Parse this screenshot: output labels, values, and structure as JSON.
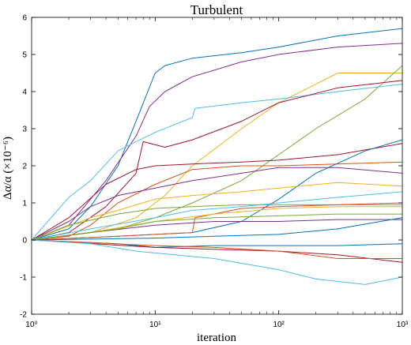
{
  "chart_data": {
    "type": "line",
    "title": "Turbulent",
    "xlabel": "iteration",
    "ylabel": "Δα/α (×10⁻⁶)",
    "xscale": "log",
    "xlim": [
      1,
      1000
    ],
    "ylim": [
      -2,
      6
    ],
    "x_ticks": [
      1,
      10,
      100,
      1000
    ],
    "x_tick_labels": [
      "10⁰",
      "10¹",
      "10²",
      "10³"
    ],
    "y_ticks": [
      -2,
      -1,
      0,
      1,
      2,
      3,
      4,
      5,
      6
    ],
    "y_tick_labels": [
      "-2",
      "-1",
      "0",
      "1",
      "2",
      "3",
      "4",
      "5",
      "6"
    ],
    "grid": false,
    "series": [
      {
        "color": "#0072BD",
        "points": [
          [
            1,
            0
          ],
          [
            2,
            0.3
          ],
          [
            3,
            0.9
          ],
          [
            5,
            2.0
          ],
          [
            7,
            3.2
          ],
          [
            10,
            4.5
          ],
          [
            12,
            4.7
          ],
          [
            20,
            4.9
          ],
          [
            50,
            5.05
          ],
          [
            100,
            5.2
          ],
          [
            300,
            5.5
          ],
          [
            1000,
            5.7
          ]
        ]
      },
      {
        "color": "#7E2F8E",
        "points": [
          [
            1,
            0
          ],
          [
            2,
            0.4
          ],
          [
            4,
            1.6
          ],
          [
            7,
            2.8
          ],
          [
            9,
            3.6
          ],
          [
            12,
            4.0
          ],
          [
            20,
            4.4
          ],
          [
            50,
            4.8
          ],
          [
            100,
            5.0
          ],
          [
            300,
            5.2
          ],
          [
            1000,
            5.3
          ]
        ]
      },
      {
        "color": "#EDB120",
        "points": [
          [
            1,
            0
          ],
          [
            3,
            0.2
          ],
          [
            7,
            0.6
          ],
          [
            12,
            1.2
          ],
          [
            20,
            2.0
          ],
          [
            50,
            3.0
          ],
          [
            100,
            3.7
          ],
          [
            200,
            4.2
          ],
          [
            300,
            4.5
          ],
          [
            1000,
            4.5
          ]
        ]
      },
      {
        "color": "#77AC30",
        "points": [
          [
            1,
            0
          ],
          [
            5,
            0.3
          ],
          [
            10,
            0.6
          ],
          [
            20,
            1.0
          ],
          [
            50,
            1.6
          ],
          [
            100,
            2.3
          ],
          [
            200,
            3.0
          ],
          [
            500,
            3.8
          ],
          [
            1000,
            4.7
          ]
        ]
      },
      {
        "color": "#4DBEEE",
        "points": [
          [
            1,
            0
          ],
          [
            2,
            1.15
          ],
          [
            3,
            1.6
          ],
          [
            5,
            2.4
          ],
          [
            7,
            2.65
          ],
          [
            10,
            2.9
          ],
          [
            20,
            3.3
          ],
          [
            21,
            3.55
          ],
          [
            50,
            3.7
          ],
          [
            100,
            3.8
          ],
          [
            300,
            4.0
          ],
          [
            1000,
            4.2
          ]
        ]
      },
      {
        "color": "#A2142F",
        "points": [
          [
            1,
            0
          ],
          [
            2,
            0.2
          ],
          [
            4,
            0.9
          ],
          [
            7,
            1.8
          ],
          [
            8,
            2.65
          ],
          [
            12,
            2.5
          ],
          [
            20,
            2.7
          ],
          [
            50,
            3.2
          ],
          [
            100,
            3.7
          ],
          [
            300,
            4.1
          ],
          [
            1000,
            4.3
          ]
        ]
      },
      {
        "color": "#D95319",
        "points": [
          [
            1,
            0
          ],
          [
            2,
            0.1
          ],
          [
            3,
            0.4
          ],
          [
            5,
            1.0
          ],
          [
            10,
            1.5
          ],
          [
            20,
            1.9
          ],
          [
            50,
            2.0
          ],
          [
            100,
            2.0
          ],
          [
            300,
            2.05
          ],
          [
            1000,
            2.1
          ]
        ]
      },
      {
        "color": "#A2142F",
        "points": [
          [
            1,
            0
          ],
          [
            2,
            0.6
          ],
          [
            4,
            1.5
          ],
          [
            7,
            1.9
          ],
          [
            10,
            2.0
          ],
          [
            20,
            2.05
          ],
          [
            50,
            2.1
          ],
          [
            100,
            2.15
          ],
          [
            300,
            2.3
          ],
          [
            1000,
            2.6
          ]
        ]
      },
      {
        "color": "#7E2F8E",
        "points": [
          [
            1,
            0
          ],
          [
            2,
            0.5
          ],
          [
            3,
            0.9
          ],
          [
            5,
            1.2
          ],
          [
            10,
            1.4
          ],
          [
            20,
            1.6
          ],
          [
            50,
            1.8
          ],
          [
            100,
            1.95
          ],
          [
            300,
            1.95
          ],
          [
            1000,
            1.8
          ]
        ]
      },
      {
        "color": "#0072BD",
        "points": [
          [
            1,
            0
          ],
          [
            5,
            0.1
          ],
          [
            10,
            0.15
          ],
          [
            20,
            0.2
          ],
          [
            50,
            0.5
          ],
          [
            100,
            1.1
          ],
          [
            200,
            1.8
          ],
          [
            500,
            2.4
          ],
          [
            1000,
            2.7
          ]
        ]
      },
      {
        "color": "#EDB120",
        "points": [
          [
            1,
            0
          ],
          [
            3,
            0.6
          ],
          [
            5,
            0.8
          ],
          [
            10,
            1.1
          ],
          [
            20,
            1.2
          ],
          [
            50,
            1.3
          ],
          [
            100,
            1.4
          ],
          [
            300,
            1.55
          ],
          [
            1000,
            1.45
          ]
        ]
      },
      {
        "color": "#4DBEEE",
        "points": [
          [
            1,
            0
          ],
          [
            3,
            0.3
          ],
          [
            10,
            0.6
          ],
          [
            20,
            0.8
          ],
          [
            50,
            0.9
          ],
          [
            100,
            1.0
          ],
          [
            300,
            1.15
          ],
          [
            1000,
            1.3
          ]
        ]
      },
      {
        "color": "#77AC30",
        "points": [
          [
            1,
            0
          ],
          [
            2,
            0.4
          ],
          [
            5,
            0.7
          ],
          [
            10,
            0.85
          ],
          [
            20,
            0.9
          ],
          [
            50,
            0.95
          ],
          [
            100,
            0.95
          ],
          [
            300,
            0.95
          ],
          [
            1000,
            0.95
          ]
        ]
      },
      {
        "color": "#D95319",
        "points": [
          [
            1,
            0
          ],
          [
            5,
            0.1
          ],
          [
            10,
            0.15
          ],
          [
            20,
            0.2
          ],
          [
            21,
            0.6
          ],
          [
            50,
            0.85
          ],
          [
            100,
            0.9
          ],
          [
            300,
            0.95
          ],
          [
            1000,
            1.0
          ]
        ]
      },
      {
        "color": "#EDB120",
        "points": [
          [
            1,
            0
          ],
          [
            3,
            0.2
          ],
          [
            10,
            0.5
          ],
          [
            30,
            0.7
          ],
          [
            100,
            0.85
          ],
          [
            300,
            0.9
          ],
          [
            1000,
            0.9
          ]
        ]
      },
      {
        "color": "#7E2F8E",
        "points": [
          [
            1,
            0
          ],
          [
            3,
            0.2
          ],
          [
            10,
            0.4
          ],
          [
            30,
            0.5
          ],
          [
            100,
            0.5
          ],
          [
            300,
            0.55
          ],
          [
            1000,
            0.55
          ]
        ]
      },
      {
        "color": "#77AC30",
        "points": [
          [
            1,
            0
          ],
          [
            5,
            0.3
          ],
          [
            10,
            0.5
          ],
          [
            30,
            0.6
          ],
          [
            100,
            0.65
          ],
          [
            300,
            0.7
          ],
          [
            1000,
            0.7
          ]
        ]
      },
      {
        "color": "#0072BD",
        "points": [
          [
            1,
            0
          ],
          [
            10,
            0.05
          ],
          [
            30,
            0.1
          ],
          [
            100,
            0.15
          ],
          [
            300,
            0.3
          ],
          [
            1000,
            0.6
          ]
        ]
      },
      {
        "color": "#0072BD",
        "points": [
          [
            1,
            0
          ],
          [
            5,
            -0.1
          ],
          [
            10,
            -0.2
          ],
          [
            30,
            -0.15
          ],
          [
            100,
            -0.15
          ],
          [
            300,
            -0.15
          ],
          [
            1000,
            -0.1
          ]
        ]
      },
      {
        "color": "#A2142F",
        "points": [
          [
            1,
            0
          ],
          [
            10,
            -0.2
          ],
          [
            30,
            -0.25
          ],
          [
            100,
            -0.3
          ],
          [
            300,
            -0.4
          ],
          [
            1000,
            -0.6
          ]
        ]
      },
      {
        "color": "#D95319",
        "points": [
          [
            1,
            0
          ],
          [
            10,
            -0.15
          ],
          [
            30,
            -0.2
          ],
          [
            100,
            -0.3
          ],
          [
            300,
            -0.5
          ],
          [
            1000,
            -0.5
          ]
        ]
      },
      {
        "color": "#4DBEEE",
        "points": [
          [
            1,
            0
          ],
          [
            3,
            -0.1
          ],
          [
            7,
            -0.3
          ],
          [
            10,
            -0.35
          ],
          [
            30,
            -0.5
          ],
          [
            100,
            -0.8
          ],
          [
            200,
            -1.05
          ],
          [
            500,
            -1.2
          ],
          [
            1000,
            -1.0
          ]
        ]
      }
    ]
  }
}
